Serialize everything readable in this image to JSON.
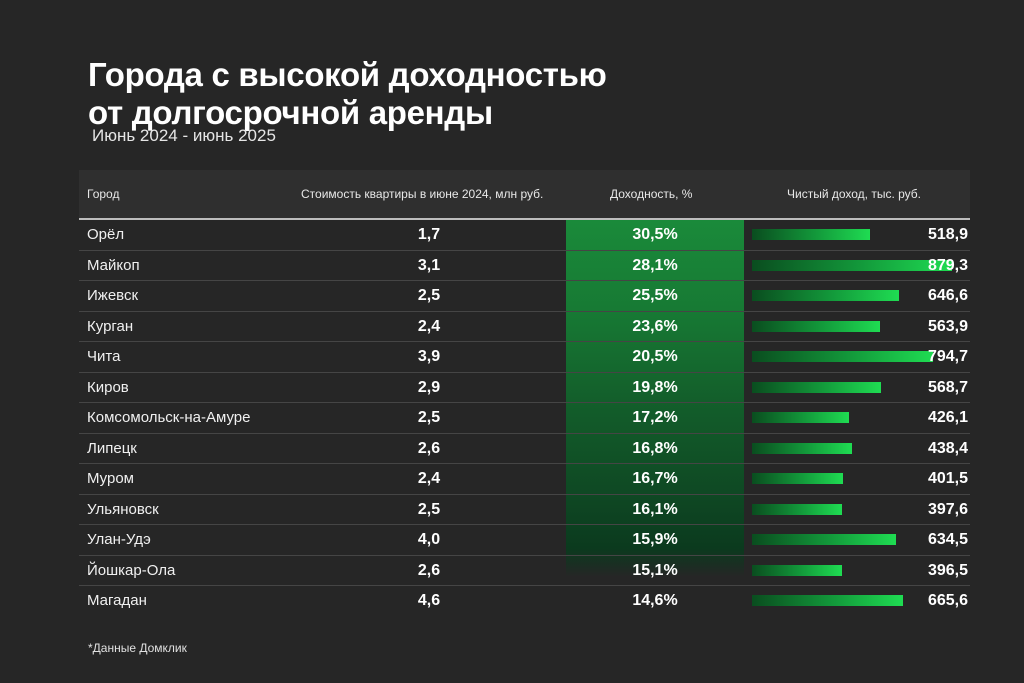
{
  "title_line1": "Города с высокой доходностью",
  "title_line2": "от долгосрочной аренды",
  "subtitle": "Июнь 2024 - июнь 2025",
  "headers": {
    "city": "Город",
    "price": "Стоимость квартиры в июне 2024, млн руб.",
    "yield": "Доходность, %",
    "income": "Чистый доход, тыс. руб."
  },
  "colors": {
    "background": "#262626",
    "accent_green": "#1fdc52",
    "yield_band": "#1a8a3a"
  },
  "chart_data": {
    "type": "table",
    "columns": [
      "Город",
      "Стоимость квартиры в июне 2024, млн руб.",
      "Доходность, %",
      "Чистый доход, тыс. руб."
    ],
    "rows": [
      {
        "city": "Орёл",
        "price": "1,7",
        "yield": "30,5%",
        "income": "518,9",
        "income_value": 518.9
      },
      {
        "city": "Майкоп",
        "price": "3,1",
        "yield": "28,1%",
        "income": "879,3",
        "income_value": 879.3
      },
      {
        "city": "Ижевск",
        "price": "2,5",
        "yield": "25,5%",
        "income": "646,6",
        "income_value": 646.6
      },
      {
        "city": "Курган",
        "price": "2,4",
        "yield": "23,6%",
        "income": "563,9",
        "income_value": 563.9
      },
      {
        "city": "Чита",
        "price": "3,9",
        "yield": "20,5%",
        "income": "794,7",
        "income_value": 794.7
      },
      {
        "city": "Киров",
        "price": "2,9",
        "yield": "19,8%",
        "income": "568,7",
        "income_value": 568.7
      },
      {
        "city": "Комсомольск-на-Амуре",
        "price": "2,5",
        "yield": "17,2%",
        "income": "426,1",
        "income_value": 426.1
      },
      {
        "city": "Липецк",
        "price": "2,6",
        "yield": "16,8%",
        "income": "438,4",
        "income_value": 438.4
      },
      {
        "city": "Муром",
        "price": "2,4",
        "yield": "16,7%",
        "income": "401,5",
        "income_value": 401.5
      },
      {
        "city": "Ульяновск",
        "price": "2,5",
        "yield": "16,1%",
        "income": "397,6",
        "income_value": 397.6
      },
      {
        "city": "Улан-Удэ",
        "price": "4,0",
        "yield": "15,9%",
        "income": "634,5",
        "income_value": 634.5
      },
      {
        "city": "Йошкар-Ола",
        "price": "2,6",
        "yield": "15,1%",
        "income": "396,5",
        "income_value": 396.5
      },
      {
        "city": "Магадан",
        "price": "4,6",
        "yield": "14,6%",
        "income": "665,6",
        "income_value": 665.6
      }
    ],
    "income_bar_max": 879.3
  },
  "footnote": "*Данные Домклик"
}
